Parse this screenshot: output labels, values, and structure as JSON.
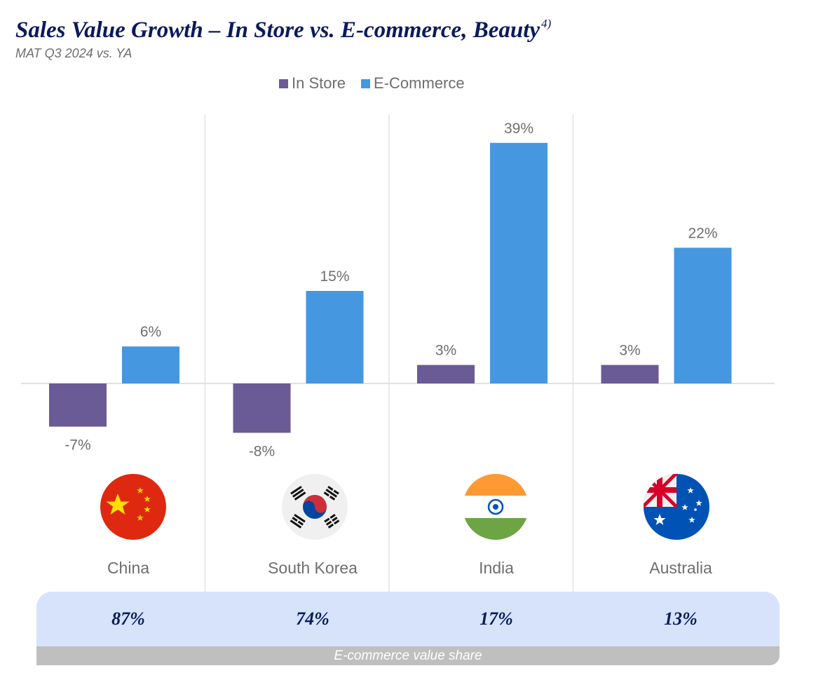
{
  "chart_data": {
    "type": "bar",
    "title": "Sales Value Growth – In Store vs. E-commerce, Beauty",
    "title_footnote": "4)",
    "subtitle": "MAT Q3 2024 vs. YA",
    "categories": [
      "China",
      "South Korea",
      "India",
      "Australia"
    ],
    "series": [
      {
        "name": "In Store",
        "color": "#6a5a96",
        "values": [
          -7,
          -8,
          3,
          3
        ],
        "labels": [
          "-7%",
          "-8%",
          "3%",
          "3%"
        ]
      },
      {
        "name": "E-Commerce",
        "color": "#4597e0",
        "values": [
          6,
          15,
          39,
          22
        ],
        "labels": [
          "6%",
          "15%",
          "39%",
          "22%"
        ]
      }
    ],
    "ylim": [
      -10,
      44
    ],
    "xlabel": "",
    "ylabel": "",
    "grid": false,
    "legend": "top-center"
  },
  "flags": [
    "china-flag-icon",
    "south-korea-flag-icon",
    "india-flag-icon",
    "australia-flag-icon"
  ],
  "ecommerce_share": {
    "values": [
      "87%",
      "74%",
      "17%",
      "13%"
    ],
    "label": "E-commerce value share"
  }
}
